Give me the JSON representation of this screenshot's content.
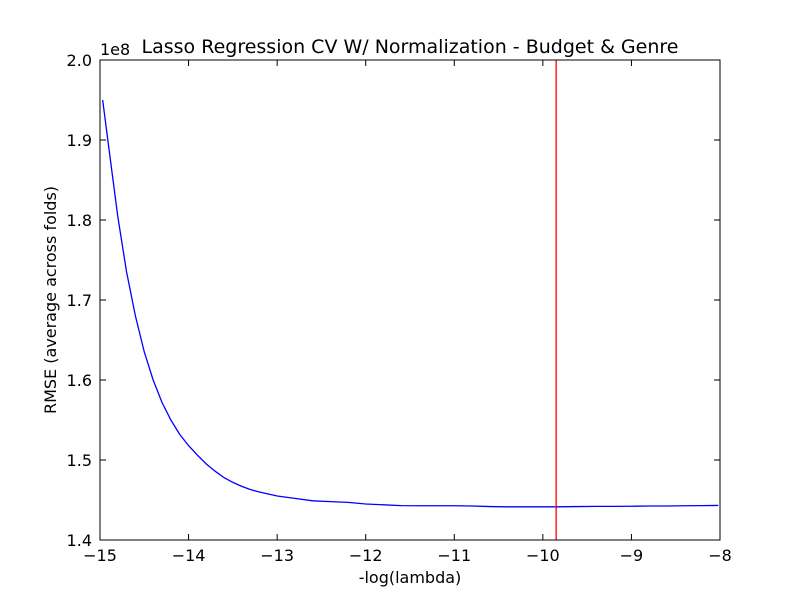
{
  "chart_data": {
    "type": "line",
    "title": "Lasso Regression CV W/ Normalization - Budget & Genre",
    "xlabel": "-log(lambda)",
    "ylabel": "RMSE (average across folds)",
    "y_offset_label": "1e8",
    "xlim": [
      -15,
      -8
    ],
    "ylim": [
      1.4,
      2.0
    ],
    "xticks": [
      -15,
      -14,
      -13,
      -12,
      -11,
      -10,
      -9,
      -8
    ],
    "xtick_labels": [
      "−15",
      "−14",
      "−13",
      "−12",
      "−11",
      "−10",
      "−9",
      "−8"
    ],
    "yticks": [
      1.4,
      1.5,
      1.6,
      1.7,
      1.8,
      1.9,
      2.0
    ],
    "ytick_labels": [
      "1.4",
      "1.5",
      "1.6",
      "1.7",
      "1.8",
      "1.9",
      "2.0"
    ],
    "grid": false,
    "series": [
      {
        "color": "#0000ff",
        "x": [
          -14.97,
          -14.9,
          -14.8,
          -14.7,
          -14.6,
          -14.5,
          -14.4,
          -14.3,
          -14.2,
          -14.1,
          -14.0,
          -13.9,
          -13.8,
          -13.7,
          -13.6,
          -13.5,
          -13.4,
          -13.3,
          -13.2,
          -13.0,
          -12.8,
          -12.6,
          -12.4,
          -12.2,
          -12.0,
          -11.8,
          -11.6,
          -11.4,
          -11.2,
          -11.0,
          -10.8,
          -10.6,
          -10.4,
          -10.2,
          -10.0,
          -9.85,
          -9.6,
          -9.4,
          -9.2,
          -9.0,
          -8.8,
          -8.6,
          -8.4,
          -8.2,
          -8.02
        ],
        "y": [
          1.95,
          1.89,
          1.805,
          1.735,
          1.68,
          1.635,
          1.6,
          1.572,
          1.55,
          1.532,
          1.518,
          1.506,
          1.495,
          1.486,
          1.478,
          1.472,
          1.467,
          1.463,
          1.46,
          1.455,
          1.452,
          1.449,
          1.448,
          1.447,
          1.445,
          1.444,
          1.443,
          1.4428,
          1.4428,
          1.4428,
          1.4425,
          1.4418,
          1.4415,
          1.4415,
          1.4415,
          1.4415,
          1.4418,
          1.442,
          1.442,
          1.4422,
          1.4425,
          1.4425,
          1.4428,
          1.443,
          1.4432
        ]
      }
    ],
    "vline": {
      "x": -9.85,
      "color": "#ff0000"
    }
  }
}
